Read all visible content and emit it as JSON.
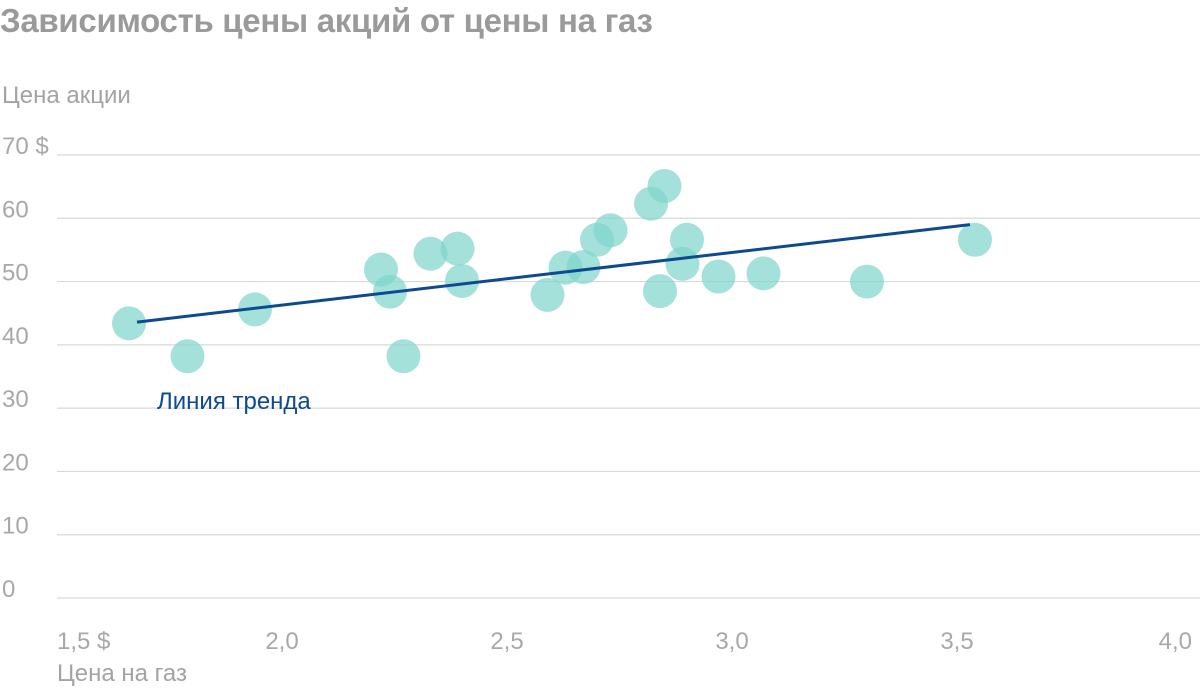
{
  "chart_data": {
    "type": "scatter",
    "title": "Зависимость цены акций от цены на газ",
    "xlabel": "Цена на газ",
    "ylabel": "Цена акции",
    "xlim": [
      1.5,
      4.0
    ],
    "ylim": [
      0,
      70
    ],
    "x_ticks": [
      {
        "value": 1.5,
        "label": "1,5 $"
      },
      {
        "value": 2.0,
        "label": "2,0"
      },
      {
        "value": 2.5,
        "label": "2,5"
      },
      {
        "value": 3.0,
        "label": "3,0"
      },
      {
        "value": 3.5,
        "label": "3,5"
      },
      {
        "value": 4.0,
        "label": "4,0"
      }
    ],
    "y_ticks": [
      {
        "value": 70,
        "label": "70 $"
      },
      {
        "value": 60,
        "label": "60"
      },
      {
        "value": 50,
        "label": "50"
      },
      {
        "value": 40,
        "label": "40"
      },
      {
        "value": 30,
        "label": "30"
      },
      {
        "value": 20,
        "label": "20"
      },
      {
        "value": 10,
        "label": "10"
      },
      {
        "value": 0,
        "label": "0"
      }
    ],
    "grid": true,
    "points": [
      {
        "x": 1.66,
        "y": 43.4
      },
      {
        "x": 1.79,
        "y": 38.2
      },
      {
        "x": 1.94,
        "y": 45.6
      },
      {
        "x": 2.22,
        "y": 51.9
      },
      {
        "x": 2.24,
        "y": 48.4
      },
      {
        "x": 2.27,
        "y": 38.2
      },
      {
        "x": 2.33,
        "y": 54.4
      },
      {
        "x": 2.39,
        "y": 55.2
      },
      {
        "x": 2.4,
        "y": 50.1
      },
      {
        "x": 2.59,
        "y": 47.9
      },
      {
        "x": 2.63,
        "y": 52.2
      },
      {
        "x": 2.67,
        "y": 52.3
      },
      {
        "x": 2.7,
        "y": 56.6
      },
      {
        "x": 2.73,
        "y": 58.1
      },
      {
        "x": 2.82,
        "y": 62.3
      },
      {
        "x": 2.84,
        "y": 48.5
      },
      {
        "x": 2.85,
        "y": 65.1
      },
      {
        "x": 2.89,
        "y": 52.8
      },
      {
        "x": 2.9,
        "y": 56.6
      },
      {
        "x": 2.97,
        "y": 50.8
      },
      {
        "x": 3.07,
        "y": 51.3
      },
      {
        "x": 3.3,
        "y": 50.0
      },
      {
        "x": 3.54,
        "y": 56.6
      }
    ],
    "trend_line": {
      "label": "Линия тренда",
      "from": {
        "x": 1.66,
        "y": 43.6
      },
      "to": {
        "x": 3.54,
        "y": 59.0
      }
    },
    "colors": {
      "points": "#7fd6cc",
      "trend": "#0e4a8f",
      "grid": "#d9d9d9",
      "title": "#9a9a9a",
      "axis_text": "#a8a8a8"
    }
  }
}
